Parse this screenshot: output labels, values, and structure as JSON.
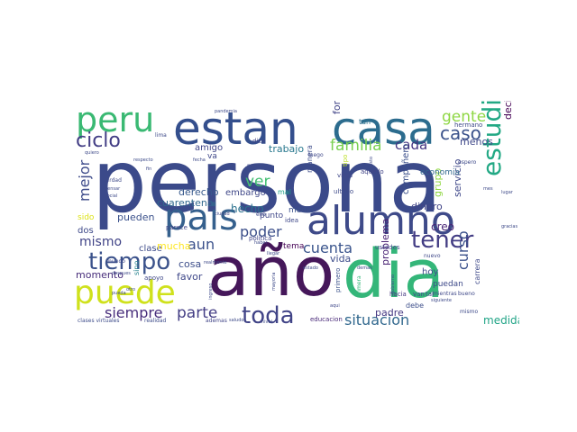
{
  "words": [
    {
      "text": "persona",
      "color": "#3b4a8a"
    },
    {
      "text": "año",
      "color": "#45175a"
    },
    {
      "text": "dia",
      "color": "#34b679"
    },
    {
      "text": "estan",
      "color": "#344f8d"
    },
    {
      "text": "casa",
      "color": "#2c6c8e"
    },
    {
      "text": "pais",
      "color": "#35608d"
    },
    {
      "text": "alumno",
      "color": "#3e4a89"
    },
    {
      "text": "puede",
      "color": "#cfe11c"
    },
    {
      "text": "peru",
      "color": "#3ab973"
    },
    {
      "text": "toda",
      "color": "#414487"
    },
    {
      "text": "estudiante",
      "color": "#22a884"
    },
    {
      "text": "tiempo",
      "color": "#3b528b"
    },
    {
      "text": "ciclo",
      "color": "#433e85"
    },
    {
      "text": "tener",
      "color": "#433d84"
    },
    {
      "text": "gente",
      "color": "#8fd744"
    },
    {
      "text": "familia",
      "color": "#7ad151"
    },
    {
      "text": "caso",
      "color": "#3b528b"
    },
    {
      "text": "parte",
      "color": "#433d84"
    },
    {
      "text": "siempre",
      "color": "#472d7b"
    },
    {
      "text": "situacion",
      "color": "#31688e"
    },
    {
      "text": "cuenta",
      "color": "#3a548c"
    },
    {
      "text": "poder",
      "color": "#3c4f8a"
    },
    {
      "text": "mismo",
      "color": "#414487"
    },
    {
      "text": "mejor",
      "color": "#3e4b8a"
    },
    {
      "text": "ver",
      "color": "#43bf71"
    },
    {
      "text": "curso",
      "color": "#3b518b"
    },
    {
      "text": "cada",
      "color": "#453581"
    },
    {
      "text": "aun",
      "color": "#3b518b"
    },
    {
      "text": "hecho",
      "color": "#2c728e"
    },
    {
      "text": "cuarentena",
      "color": "#31688e"
    },
    {
      "text": "forma",
      "color": "#404387"
    },
    {
      "text": "trabajo",
      "color": "#29788e"
    },
    {
      "text": "derecho",
      "color": "#37598c"
    },
    {
      "text": "amigo",
      "color": "#404588"
    },
    {
      "text": "embargo",
      "color": "#3f4788"
    },
    {
      "text": "pueden",
      "color": "#3b518b"
    },
    {
      "text": "creo",
      "color": "#482475"
    },
    {
      "text": "dinero",
      "color": "#414487"
    },
    {
      "text": "servicio",
      "color": "#3f4889"
    },
    {
      "text": "compañero",
      "color": "#3c508b"
    },
    {
      "text": "momento",
      "color": "#472c7a"
    },
    {
      "text": "cosa",
      "color": "#3d4e8a"
    },
    {
      "text": "favor",
      "color": "#3f4889"
    },
    {
      "text": "clase",
      "color": "#3e4c8a"
    },
    {
      "text": "mucha",
      "color": "#fde725"
    },
    {
      "text": "vida",
      "color": "#3d4d8a"
    },
    {
      "text": "problema",
      "color": "#482173"
    },
    {
      "text": "padre",
      "color": "#453882"
    },
    {
      "text": "hoy",
      "color": "#3e4b8a"
    },
    {
      "text": "medida",
      "color": "#20a486"
    },
    {
      "text": "menos",
      "color": "#3f4889"
    },
    {
      "text": "decir",
      "color": "#440154"
    },
    {
      "text": "grupo",
      "color": "#90d743"
    },
    {
      "text": "economia",
      "color": "#31688e"
    },
    {
      "text": "dos",
      "color": "#3e4989"
    },
    {
      "text": "sido",
      "color": "#dde318"
    },
    {
      "text": "punto",
      "color": "#3f4788"
    },
    {
      "text": "tema",
      "color": "#440154"
    },
    {
      "text": "medio",
      "color": "#3b528b"
    },
    {
      "text": "va",
      "color": "#3f4889"
    },
    {
      "text": "hermano",
      "color": "#3e4989"
    },
    {
      "text": "tan",
      "color": "#2c728e"
    },
    {
      "text": "ultimo",
      "color": "#3e4a89"
    },
    {
      "text": "aquello",
      "color": "#414487"
    },
    {
      "text": "virus",
      "color": "#3f4889"
    },
    {
      "text": "puedan",
      "color": "#3e4a89"
    },
    {
      "text": "debe",
      "color": "#3d4e8a"
    },
    {
      "text": "mal",
      "color": "#1fa188"
    },
    {
      "text": "ustedes",
      "color": "#3f4788"
    },
    {
      "text": "hacia",
      "color": "#453882"
    },
    {
      "text": "carrera",
      "color": "#3e4989"
    },
    {
      "text": "sino",
      "color": "#26828e"
    },
    {
      "text": "idea",
      "color": "#3f4889"
    },
    {
      "text": "manera",
      "color": "#3e4c8a"
    },
    {
      "text": "politica",
      "color": "#414487"
    },
    {
      "text": "luego",
      "color": "#3f4889"
    },
    {
      "text": "mundo",
      "color": "#3f4889"
    },
    {
      "text": "parece",
      "color": "#414487"
    },
    {
      "text": "apoyo",
      "color": "#3f4889"
    },
    {
      "text": "dice",
      "color": "#414487"
    },
    {
      "text": "educacion",
      "color": "#482878"
    },
    {
      "text": "ademas",
      "color": "#414487"
    },
    {
      "text": "realidad",
      "color": "#3e4c8a"
    },
    {
      "text": "clases virtuales",
      "color": "#3e4c8a"
    },
    {
      "text": "tipo",
      "color": "#bddf26"
    },
    {
      "text": "primero",
      "color": "#3b528b"
    },
    {
      "text": "primera",
      "color": "#35b779"
    },
    {
      "text": "mientras",
      "color": "#3f4889"
    },
    {
      "text": "bueno",
      "color": "#3f4889"
    },
    {
      "text": "nuevo",
      "color": "#3f4889"
    },
    {
      "text": "mismo",
      "color": "#3e4a89"
    },
    {
      "text": "respecto",
      "color": "#3e4c8a"
    },
    {
      "text": "quiero",
      "color": "#3e4a89"
    },
    {
      "text": "fin",
      "color": "#3e4a89"
    },
    {
      "text": "aqui",
      "color": "#3f4889"
    },
    {
      "text": "despues",
      "color": "#3e4a89"
    },
    {
      "text": "espero",
      "color": "#3e4a89"
    },
    {
      "text": "verdad",
      "color": "#3e4a89"
    },
    {
      "text": "pensar",
      "color": "#3e4a89"
    },
    {
      "text": "social",
      "color": "#3e4a89"
    },
    {
      "text": "lima",
      "color": "#3e4a89"
    },
    {
      "text": "pago",
      "color": "#3e4a89"
    },
    {
      "text": "ello",
      "color": "#3e4a89"
    },
    {
      "text": "haber",
      "color": "#3e4a89"
    },
    {
      "text": "gobierno",
      "color": "#3e4a89"
    },
    {
      "text": "demas",
      "color": "#3e4a89"
    },
    {
      "text": "fecha",
      "color": "#3e4a89"
    },
    {
      "text": "realmente",
      "color": "#3e4a89"
    },
    {
      "text": "estado",
      "color": "#3e4a89"
    },
    {
      "text": "otro",
      "color": "#3e4a89"
    },
    {
      "text": "ingreso",
      "color": "#3e4a89"
    },
    {
      "text": "mayoria",
      "color": "#3e4a89"
    },
    {
      "text": "nivel",
      "color": "#3e4a89"
    },
    {
      "text": "saludo",
      "color": "#3e4a89"
    },
    {
      "text": "pandemia",
      "color": "#3e4a89"
    },
    {
      "text": "pueda",
      "color": "#3e4a89"
    },
    {
      "text": "puesto",
      "color": "#3e4a89"
    },
    {
      "text": "llegar",
      "color": "#3e4a89"
    },
    {
      "text": "ciudad",
      "color": "#3e4a89"
    },
    {
      "text": "mes",
      "color": "#3e4a89"
    },
    {
      "text": "gracias",
      "color": "#3e4a89"
    },
    {
      "text": "tal",
      "color": "#3e4a89"
    },
    {
      "text": "van",
      "color": "#3e4a89"
    },
    {
      "text": "siguiente",
      "color": "#3e4a89"
    },
    {
      "text": "lugar",
      "color": "#3e4a89"
    }
  ]
}
